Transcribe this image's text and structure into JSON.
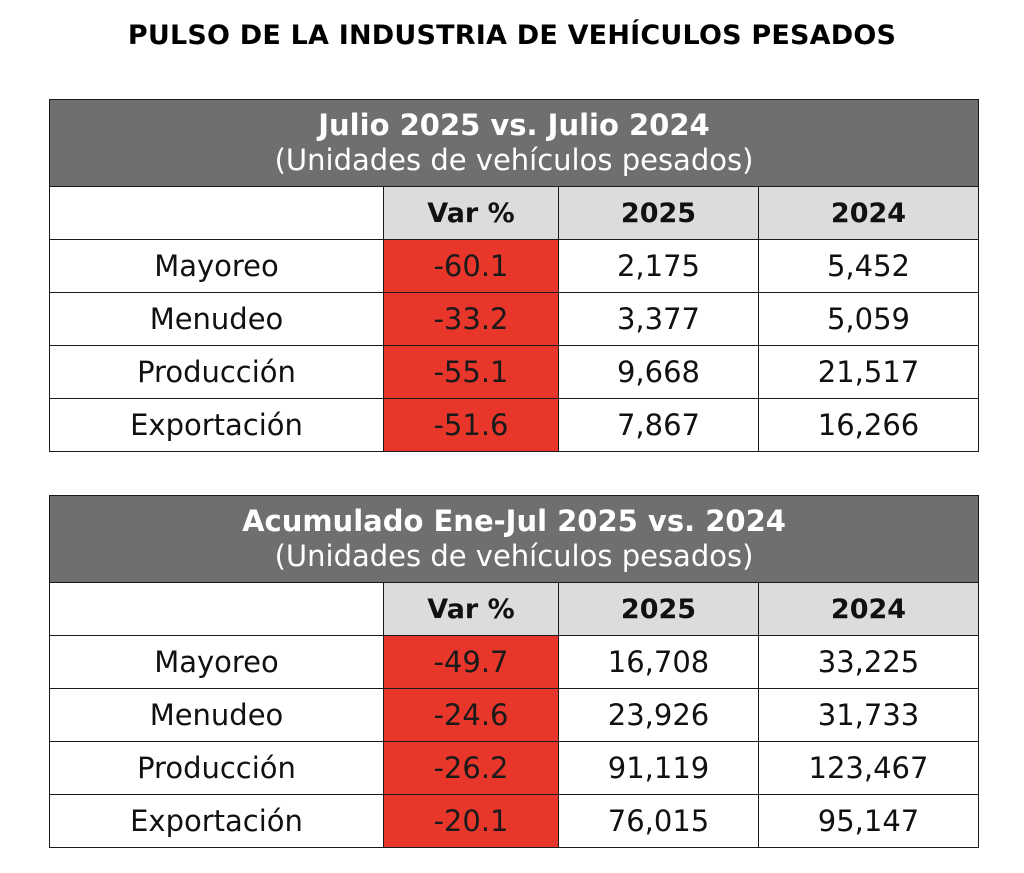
{
  "page": {
    "title": "PULSO DE LA INDUSTRIA DE VEHÍCULOS PESADOS"
  },
  "colors": {
    "header_bg": "#6f6f6f",
    "column_header_bg": "#dcdcdc",
    "variation_bg": "#e8362a"
  },
  "tables": [
    {
      "title": "Julio 2025 vs. Julio 2024",
      "subtitle": "(Unidades de vehículos pesados)",
      "columns": [
        "",
        "Var %",
        "2025",
        "2024"
      ],
      "rows": [
        {
          "label": "Mayoreo",
          "var": "-60.1",
          "y2025": "2,175",
          "y2024": "5,452"
        },
        {
          "label": "Menudeo",
          "var": "-33.2",
          "y2025": "3,377",
          "y2024": "5,059"
        },
        {
          "label": "Producción",
          "var": "-55.1",
          "y2025": "9,668",
          "y2024": "21,517"
        },
        {
          "label": "Exportación",
          "var": "-51.6",
          "y2025": "7,867",
          "y2024": "16,266"
        }
      ]
    },
    {
      "title": "Acumulado Ene-Jul 2025 vs. 2024",
      "subtitle": "(Unidades de vehículos pesados)",
      "columns": [
        "",
        "Var %",
        "2025",
        "2024"
      ],
      "rows": [
        {
          "label": "Mayoreo",
          "var": "-49.7",
          "y2025": "16,708",
          "y2024": "33,225"
        },
        {
          "label": "Menudeo",
          "var": "-24.6",
          "y2025": "23,926",
          "y2024": "31,733"
        },
        {
          "label": "Producción",
          "var": "-26.2",
          "y2025": "91,119",
          "y2024": "123,467"
        },
        {
          "label": "Exportación",
          "var": "-20.1",
          "y2025": "76,015",
          "y2024": "95,147"
        }
      ]
    }
  ]
}
